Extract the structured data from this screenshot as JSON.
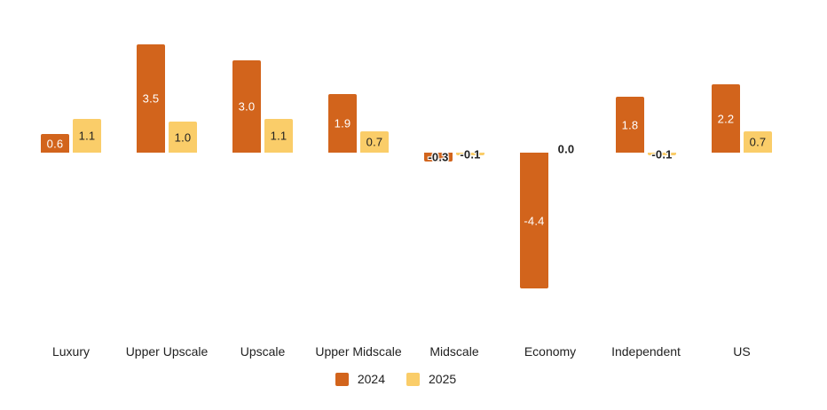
{
  "chart_data": {
    "type": "bar",
    "title": "",
    "xlabel": "",
    "ylabel": "",
    "grid": false,
    "legend_position": "bottom",
    "value_labels": true,
    "ylim": [
      -4.4,
      3.5
    ],
    "categories": [
      "Luxury",
      "Upper Upscale",
      "Upscale",
      "Upper Midscale",
      "Midscale",
      "Economy",
      "Independent",
      "US"
    ],
    "series": [
      {
        "name": "2024",
        "color": "#D2641C",
        "values": [
          0.6,
          3.5,
          3.0,
          1.9,
          -0.3,
          -4.4,
          1.8,
          2.2
        ]
      },
      {
        "name": "2025",
        "color": "#FACD69",
        "values": [
          1.1,
          1.0,
          1.1,
          0.7,
          -0.1,
          0.0,
          -0.1,
          0.7
        ]
      }
    ]
  },
  "colors": {
    "bar_label_on_orange": "#ffffff",
    "bar_label_dark": "#212121",
    "axis_text": "#212121",
    "background": "#ffffff"
  }
}
